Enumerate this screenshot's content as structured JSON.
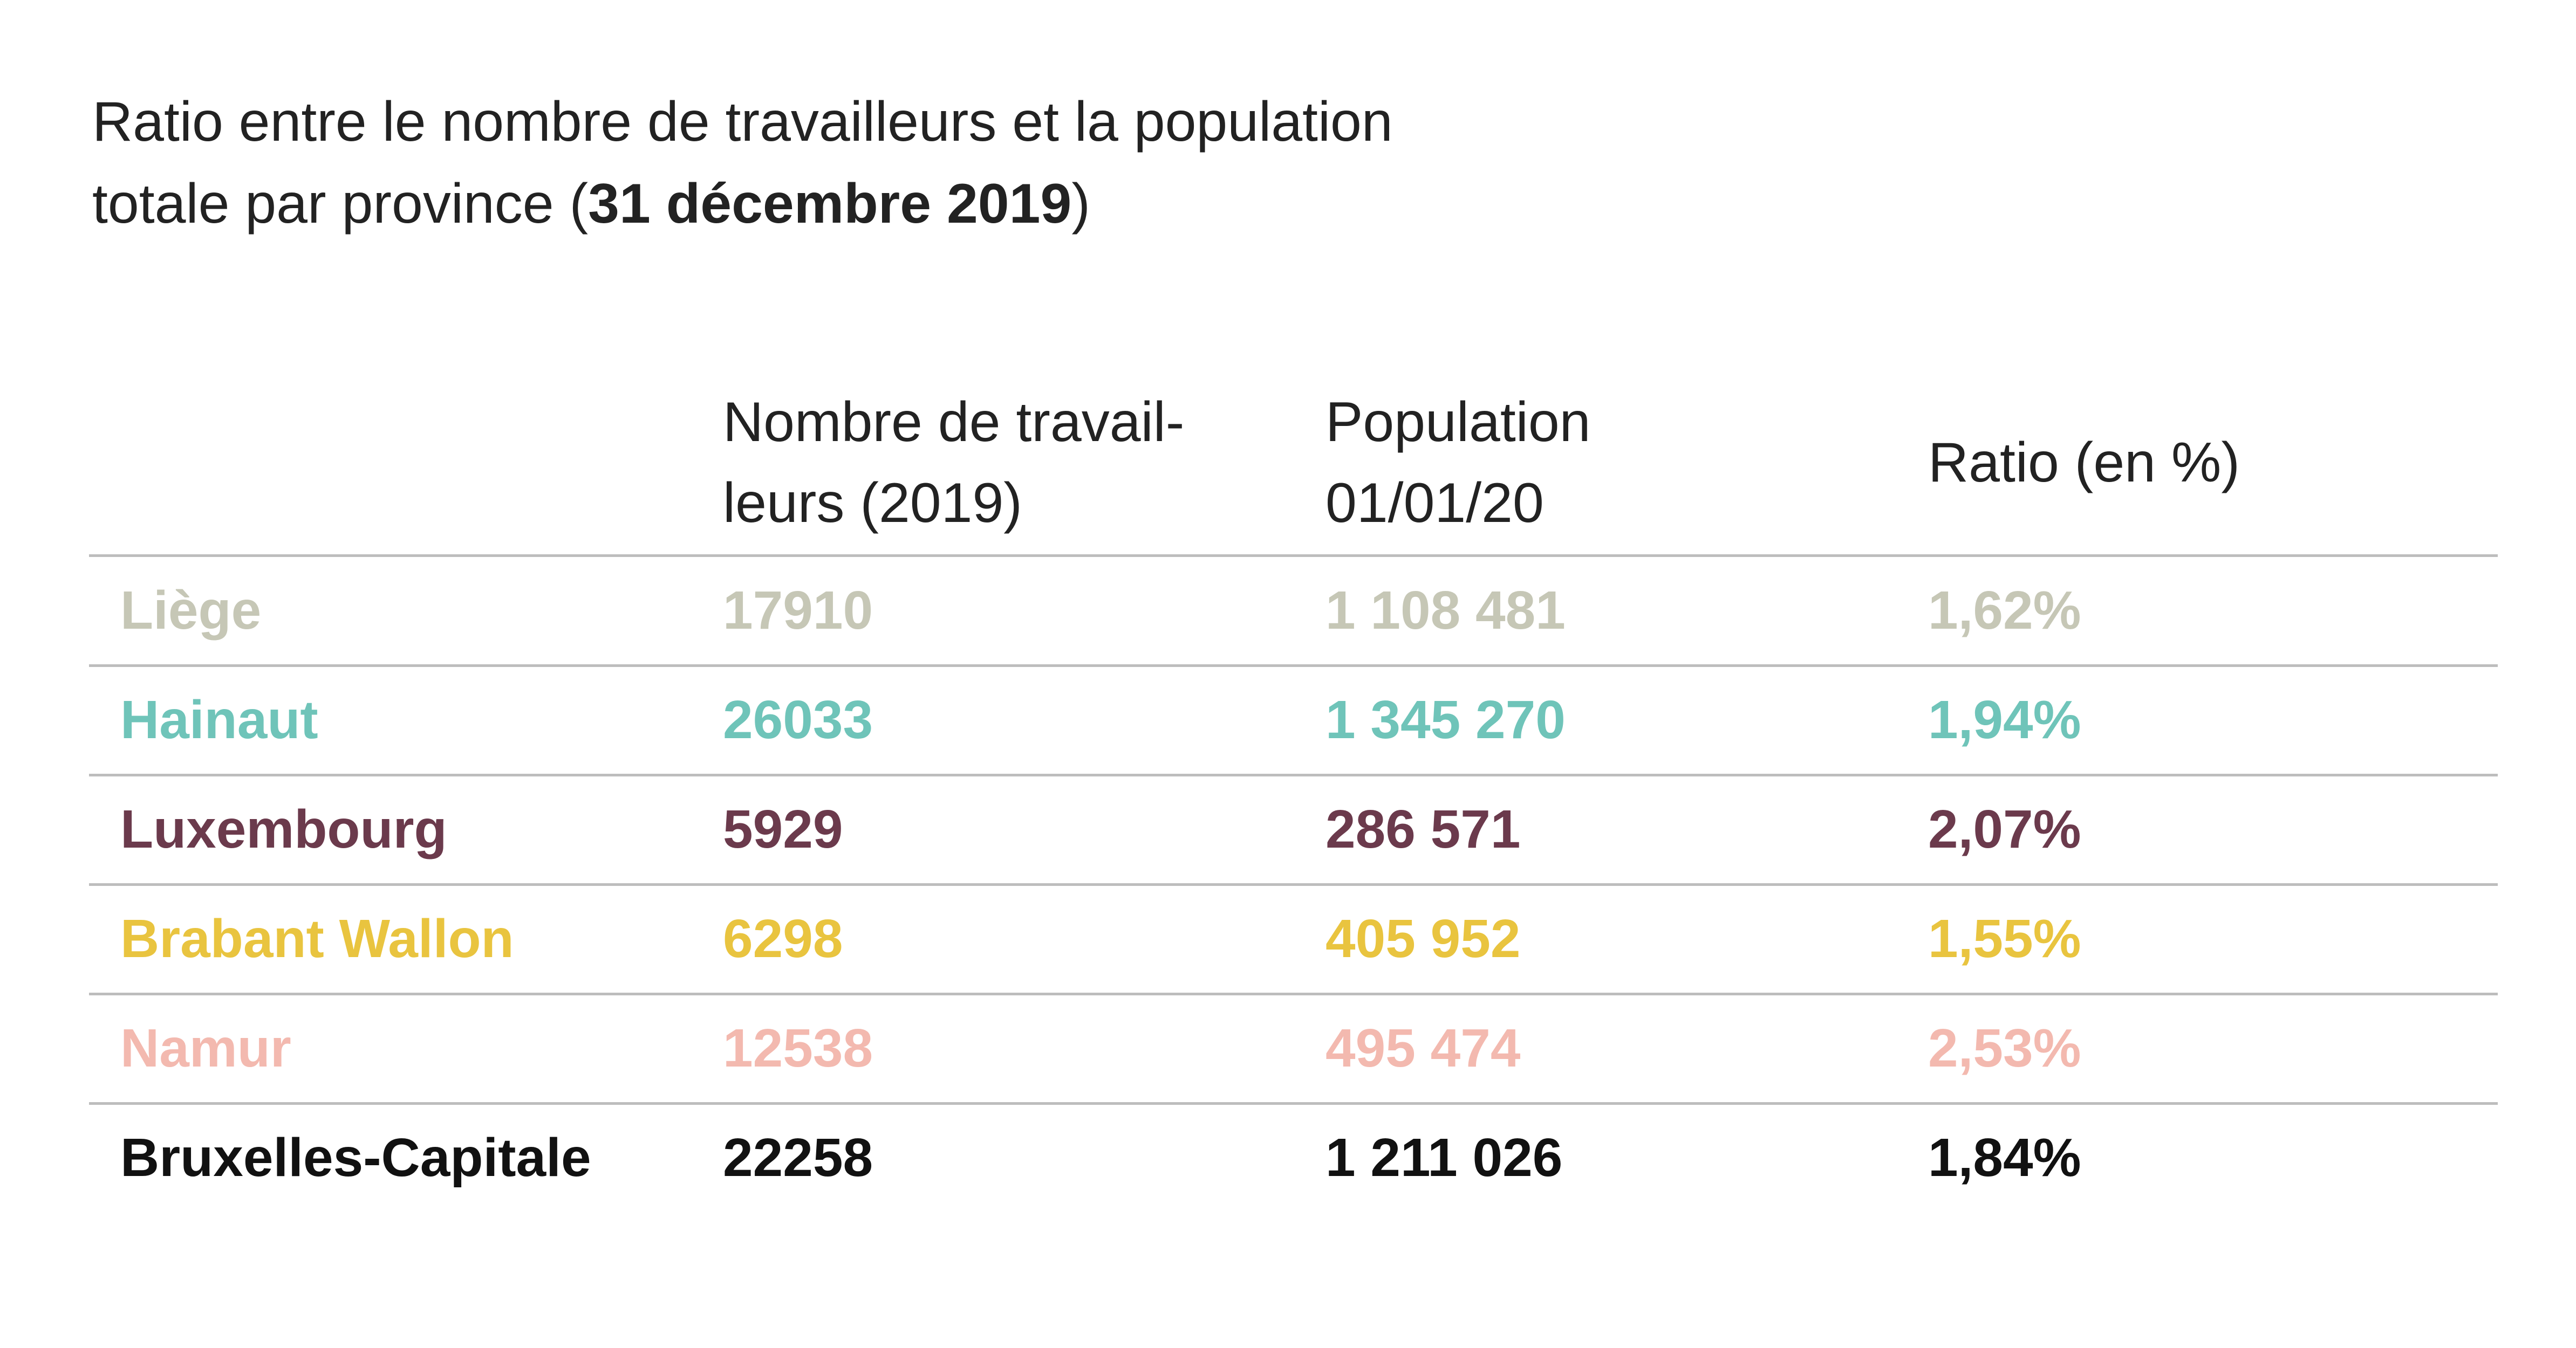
{
  "header": {
    "title": [
      "Ratio entre le nombre de travailleurs et la population",
      "totale par province  (",
      "31 décembre 2019",
      ")"
    ]
  },
  "table": {
    "columns": [
      [
        "Nombre de travail-",
        "leurs (2019)"
      ],
      [
        "Population",
        "01/01/20"
      ],
      [
        "Ratio (en %)"
      ]
    ],
    "rows": [
      [
        "Liège",
        "17910",
        "1 108 481",
        "1,62%"
      ],
      [
        "Hainaut",
        "26033",
        "1 345 270",
        "1,94%"
      ],
      [
        "Luxembourg",
        "5929",
        "286 571",
        "2,07%"
      ],
      [
        "Brabant Wallon",
        "6298",
        "405 952",
        "1,55%"
      ],
      [
        "Namur",
        "12538",
        "495 474",
        "2,53%"
      ],
      [
        "Bruxelles-Capitale",
        "22258",
        "1 211 026",
        "1,84%"
      ]
    ],
    "row_colors": [
      "#c6c7b6",
      "#6fc4b9",
      "#6b3a4c",
      "#e9c43f",
      "#f3b9af",
      "#111111"
    ]
  }
}
